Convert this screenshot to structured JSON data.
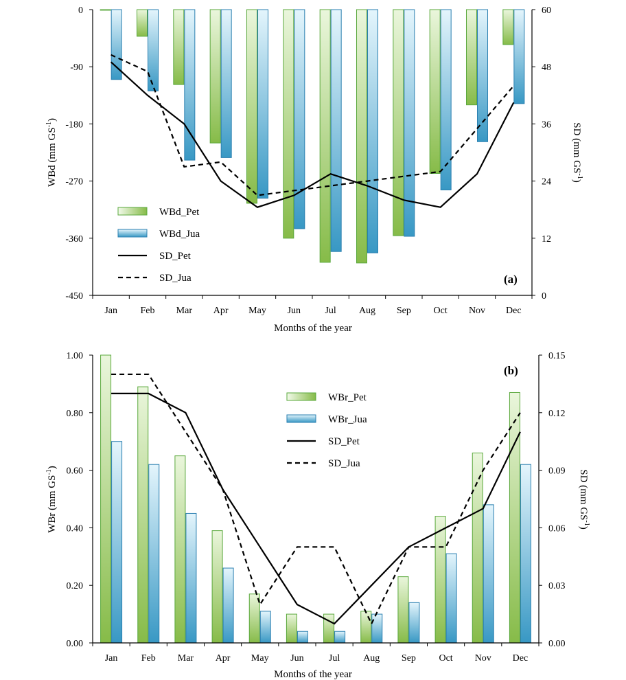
{
  "colors": {
    "pet_bar_top": "#e8f5d6",
    "pet_bar_bottom": "#8cbf4e",
    "pet_bar_stroke": "#5aa83c",
    "jua_bar_top": "#dff2fb",
    "jua_bar_bottom": "#3a9cc6",
    "jua_bar_stroke": "#2a7fb0",
    "line": "#000000"
  },
  "chart_data": [
    {
      "type": "bar",
      "panel_label": "(a)",
      "categories": [
        "Jan",
        "Feb",
        "Mar",
        "Apr",
        "May",
        "Jun",
        "Jul",
        "Aug",
        "Sep",
        "Oct",
        "Nov",
        "Dec"
      ],
      "xlabel": "Months of the year",
      "ylabel": "WBd (mm GS-1)",
      "ylabel_main": "WBd (mm GS",
      "ylabel_sup": "-1",
      "y2label_main": "SD (mm GS",
      "y2label_sup": "-1",
      "ylim": [
        -450,
        0
      ],
      "y2lim": [
        0,
        60
      ],
      "yticks": [
        "0",
        "-90",
        "-180",
        "-270",
        "-360",
        "-450"
      ],
      "y2ticks": [
        "60",
        "48",
        "36",
        "24",
        "12",
        "0"
      ],
      "series": [
        {
          "name": "WBd_Pet",
          "kind": "bar",
          "axis": "left",
          "values": [
            -1,
            -42,
            -118,
            -210,
            -305,
            -360,
            -398,
            -399,
            -356,
            -258,
            -150,
            -55
          ]
        },
        {
          "name": "WBd_Jua",
          "kind": "bar",
          "axis": "left",
          "values": [
            -110,
            -128,
            -237,
            -233,
            -297,
            -345,
            -381,
            -383,
            -357,
            -284,
            -208,
            -148
          ]
        },
        {
          "name": "SD_Pet",
          "kind": "line",
          "style": "solid",
          "axis": "right",
          "values": [
            49,
            42,
            36,
            24,
            18.5,
            21,
            25.5,
            23,
            20,
            18.5,
            25.5,
            40.5
          ]
        },
        {
          "name": "SD_Jua",
          "kind": "line",
          "style": "dashed",
          "axis": "right",
          "values": [
            50.5,
            47,
            27,
            28,
            21,
            22,
            23,
            24,
            25,
            26,
            35,
            44
          ]
        }
      ]
    },
    {
      "type": "bar",
      "panel_label": "(b)",
      "categories": [
        "Jan",
        "Feb",
        "Mar",
        "Apr",
        "May",
        "Jun",
        "Jul",
        "Aug",
        "Sep",
        "Oct",
        "Nov",
        "Dec"
      ],
      "xlabel": "Months of the year",
      "ylabel": "WBr (mm GS-1)",
      "ylabel_main": "WBr (mm GS",
      "ylabel_sup": "-1",
      "y2label_main": "SD (mm GS",
      "y2label_sup": "-1",
      "ylim": [
        0,
        1.0
      ],
      "y2lim": [
        0,
        0.15
      ],
      "yticks": [
        "1.00",
        "0.80",
        "0.60",
        "0.40",
        "0.20",
        "0.00"
      ],
      "y2ticks": [
        "0.15",
        "0.12",
        "0.09",
        "0.06",
        "0.03",
        "0.00"
      ],
      "series": [
        {
          "name": "WBr_Pet",
          "kind": "bar",
          "axis": "left",
          "values": [
            1.0,
            0.89,
            0.65,
            0.39,
            0.17,
            0.1,
            0.1,
            0.11,
            0.23,
            0.44,
            0.66,
            0.87
          ]
        },
        {
          "name": "WBr_Jua",
          "kind": "bar",
          "axis": "left",
          "values": [
            0.7,
            0.62,
            0.45,
            0.26,
            0.11,
            0.04,
            0.04,
            0.1,
            0.14,
            0.31,
            0.48,
            0.62
          ]
        },
        {
          "name": "SD_Pet",
          "kind": "line",
          "style": "solid",
          "axis": "right",
          "values": [
            0.13,
            0.13,
            0.12,
            0.08,
            0.05,
            0.02,
            0.01,
            0.03,
            0.05,
            0.06,
            0.07,
            0.11
          ]
        },
        {
          "name": "SD_Jua",
          "kind": "line",
          "style": "dashed",
          "axis": "right",
          "values": [
            0.14,
            0.14,
            0.11,
            0.08,
            0.02,
            0.05,
            0.05,
            0.01,
            0.05,
            0.05,
            0.09,
            0.12
          ]
        }
      ]
    }
  ]
}
